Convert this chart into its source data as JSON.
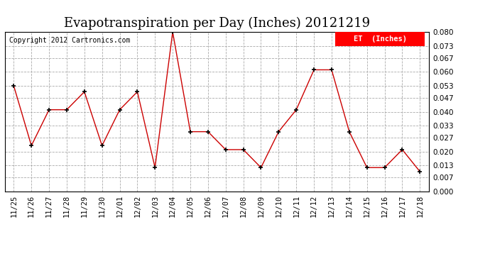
{
  "title": "Evapotranspiration per Day (Inches) 20121219",
  "copyright_text": "Copyright 2012 Cartronics.com",
  "legend_label": "ET  (Inches)",
  "legend_bg": "#ff0000",
  "legend_text_color": "#ffffff",
  "x_labels": [
    "11/25",
    "11/26",
    "11/27",
    "11/28",
    "11/29",
    "11/30",
    "12/01",
    "12/02",
    "12/03",
    "12/04",
    "12/05",
    "12/06",
    "12/07",
    "12/08",
    "12/09",
    "12/10",
    "12/11",
    "12/12",
    "12/13",
    "12/14",
    "12/15",
    "12/16",
    "12/17",
    "12/18"
  ],
  "y_values": [
    0.053,
    0.023,
    0.041,
    0.041,
    0.05,
    0.023,
    0.041,
    0.05,
    0.012,
    0.08,
    0.03,
    0.03,
    0.021,
    0.021,
    0.012,
    0.03,
    0.041,
    0.061,
    0.061,
    0.03,
    0.012,
    0.012,
    0.021,
    0.01
  ],
  "line_color": "#cc0000",
  "marker_color": "#000000",
  "marker_size": 5,
  "ylim": [
    0.0,
    0.08
  ],
  "yticks": [
    0.0,
    0.007,
    0.013,
    0.02,
    0.027,
    0.033,
    0.04,
    0.047,
    0.053,
    0.06,
    0.067,
    0.073,
    0.08
  ],
  "background_color": "#ffffff",
  "grid_color": "#aaaaaa",
  "title_fontsize": 13,
  "tick_fontsize": 7.5,
  "copyright_fontsize": 7
}
